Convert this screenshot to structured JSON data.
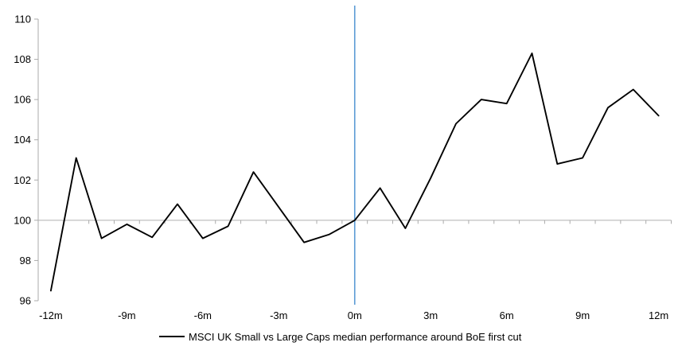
{
  "chart_data": {
    "type": "line",
    "x_months": [
      -12,
      -11,
      -10,
      -9,
      -8,
      -7,
      -6,
      -5,
      -4,
      -3,
      -2,
      -1,
      0,
      1,
      2,
      3,
      4,
      5,
      6,
      7,
      8,
      9,
      10,
      11,
      12
    ],
    "series": [
      {
        "name": "MSCI UK Small vs Large Caps median performance around BoE first cut",
        "color": "#000000",
        "values": [
          96.5,
          103.1,
          99.1,
          99.8,
          99.15,
          100.8,
          99.1,
          99.7,
          102.4,
          100.65,
          98.9,
          99.3,
          100.0,
          101.6,
          99.6,
          102.1,
          104.8,
          106.0,
          105.8,
          108.3,
          102.8,
          103.1,
          105.6,
          106.5,
          105.2
        ]
      }
    ],
    "x_ticks": [
      {
        "label": "-12m",
        "month": -12
      },
      {
        "label": "-9m",
        "month": -9
      },
      {
        "label": "-6m",
        "month": -6
      },
      {
        "label": "-3m",
        "month": -3
      },
      {
        "label": "0m",
        "month": 0
      },
      {
        "label": "3m",
        "month": 3
      },
      {
        "label": "6m",
        "month": 6
      },
      {
        "label": "9m",
        "month": 9
      },
      {
        "label": "12m",
        "month": 12
      }
    ],
    "y_ticks": [
      96,
      98,
      100,
      102,
      104,
      106,
      108,
      110
    ],
    "ylim": [
      96,
      110
    ],
    "xlim": [
      -12.5,
      12.5
    ],
    "baseline": {
      "value": 100,
      "color": "#BFBFBF"
    },
    "event_line": {
      "month": 0,
      "color": "#5B9BD5"
    },
    "axis_color": "#ABABAB",
    "label_color": "#000000",
    "legend_position": "bottom",
    "grid": "off"
  }
}
